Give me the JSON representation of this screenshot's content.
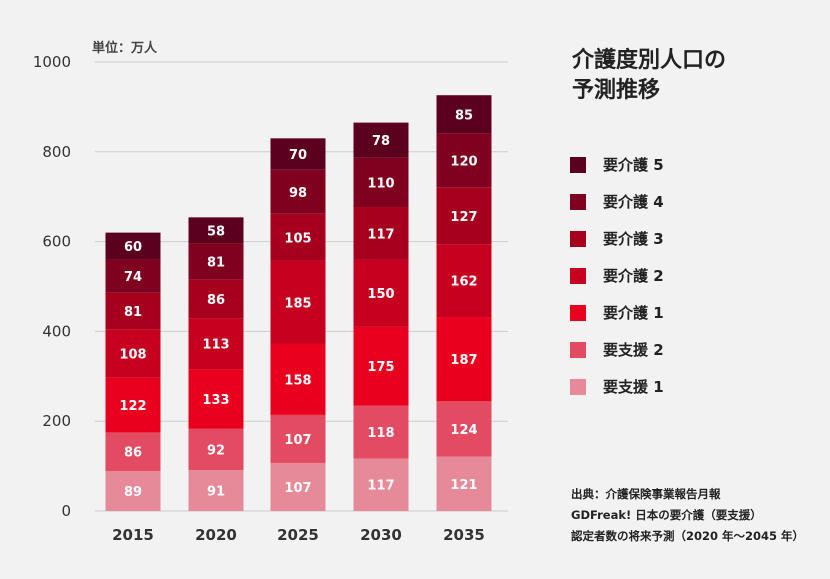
{
  "title": "介護度別人口の\n予測推移",
  "unit_label": "単位：万人",
  "source_lines": [
    "出典：介護保険事業報告月報",
    "GDFreak! 日本の要介護（要支援）",
    "認定者数の将来予測（2020 年〜2045 年）"
  ],
  "colors": {
    "background": "#f2f2f2",
    "gridline": "#cccccc"
  },
  "chart_data": {
    "type": "bar",
    "stacked": true,
    "categories": [
      "2015",
      "2020",
      "2025",
      "2030",
      "2035"
    ],
    "ylim": [
      0,
      1000
    ],
    "yticks": [
      0,
      200,
      400,
      600,
      800,
      1000
    ],
    "grid": true,
    "legend_position": "right",
    "series": [
      {
        "name": "要支援 1",
        "color": "#e68a9a",
        "values": [
          89,
          91,
          107,
          117,
          121
        ]
      },
      {
        "name": "要支援 2",
        "color": "#e34b62",
        "values": [
          86,
          92,
          107,
          118,
          124
        ]
      },
      {
        "name": "要介護 1",
        "color": "#e8001e",
        "values": [
          122,
          133,
          158,
          175,
          187
        ]
      },
      {
        "name": "要介護 2",
        "color": "#c8001f",
        "values": [
          108,
          113,
          185,
          150,
          162
        ]
      },
      {
        "name": "要介護 3",
        "color": "#a6001e",
        "values": [
          81,
          86,
          105,
          117,
          127
        ]
      },
      {
        "name": "要介護 4",
        "color": "#800020",
        "values": [
          74,
          81,
          98,
          110,
          120
        ]
      },
      {
        "name": "要介護 5",
        "color": "#5c0020",
        "values": [
          60,
          58,
          70,
          78,
          85
        ]
      }
    ]
  }
}
